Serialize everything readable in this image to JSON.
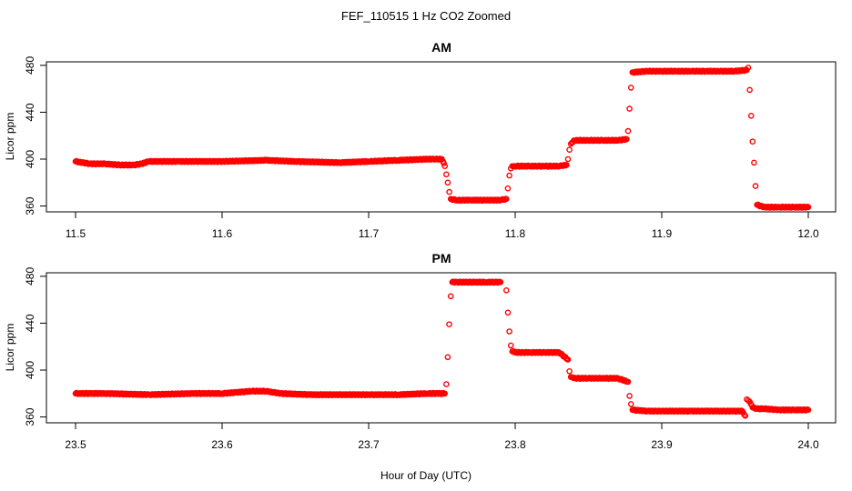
{
  "figure": {
    "title": "FEF_110515  1 Hz CO2 Zoomed",
    "xlabel": "Hour of Day (UTC)",
    "point_color": "#ff0000"
  },
  "chart_data": [
    {
      "type": "scatter",
      "title": "AM",
      "xlabel": "",
      "ylabel": "Licor ppm",
      "xlim": [
        11.5,
        12.0
      ],
      "ylim": [
        355,
        483
      ],
      "x_ticks": [
        11.5,
        11.6,
        11.7,
        11.8,
        11.9,
        12.0
      ],
      "x_tick_labels": [
        "11.5",
        "11.6",
        "11.7",
        "11.8",
        "11.9",
        "12.0"
      ],
      "y_ticks": [
        360,
        400,
        440,
        480
      ],
      "y_tick_labels": [
        "360",
        "400",
        "440",
        "480"
      ],
      "grid": false,
      "marker": "open-circle",
      "color": "#ff0000",
      "series": [
        {
          "x": [
            11.5,
            11.51,
            11.52,
            11.53,
            11.54,
            11.545,
            11.55,
            11.57,
            11.6,
            11.63,
            11.65,
            11.68,
            11.7,
            11.72,
            11.74,
            11.75,
            11.752,
            11.753,
            11.754,
            11.755,
            11.756,
            11.76,
            11.77,
            11.78,
            11.79,
            11.794,
            11.795,
            11.796,
            11.797,
            11.798,
            11.8,
            11.81,
            11.82,
            11.83,
            11.835,
            11.836,
            11.837,
            11.838,
            11.84,
            11.85,
            11.86,
            11.87,
            11.876,
            11.877,
            11.878,
            11.879,
            11.88,
            11.89,
            11.9,
            11.91,
            11.92,
            11.93,
            11.94,
            11.95,
            11.958,
            11.959,
            11.96,
            11.961,
            11.962,
            11.963,
            11.964,
            11.965,
            11.97,
            11.98,
            11.99,
            12.0
          ],
          "y": [
            398,
            396,
            396,
            395,
            395,
            396,
            398,
            398,
            398,
            399,
            398,
            397,
            398,
            399,
            400,
            400,
            394,
            387,
            380,
            372,
            366,
            365,
            365,
            365,
            365,
            366,
            375,
            386,
            392,
            394,
            394,
            394,
            394,
            394,
            395,
            400,
            408,
            413,
            416,
            416,
            416,
            416,
            417,
            424,
            443,
            461,
            474,
            475,
            475,
            475,
            475,
            475,
            475,
            475,
            476,
            478,
            459,
            437,
            415,
            397,
            377,
            361,
            359,
            359,
            359,
            359
          ]
        }
      ]
    },
    {
      "type": "scatter",
      "title": "PM",
      "xlabel": "",
      "ylabel": "Licor ppm",
      "xlim": [
        23.5,
        24.0
      ],
      "ylim": [
        355,
        483
      ],
      "x_ticks": [
        23.5,
        23.6,
        23.7,
        23.8,
        23.9,
        24.0
      ],
      "x_tick_labels": [
        "23.5",
        "23.6",
        "23.7",
        "23.8",
        "23.9",
        "24.0"
      ],
      "y_ticks": [
        360,
        400,
        440,
        480
      ],
      "y_tick_labels": [
        "360",
        "400",
        "440",
        "480"
      ],
      "grid": false,
      "marker": "open-circle",
      "color": "#ff0000",
      "series": [
        {
          "x": [
            23.5,
            23.52,
            23.55,
            23.58,
            23.6,
            23.61,
            23.62,
            23.63,
            23.64,
            23.66,
            23.7,
            23.72,
            23.74,
            23.752,
            23.753,
            23.754,
            23.755,
            23.756,
            23.757,
            23.76,
            23.78,
            23.79,
            23.794,
            23.795,
            23.796,
            23.797,
            23.798,
            23.8,
            23.81,
            23.82,
            23.83,
            23.836,
            23.837,
            23.838,
            23.84,
            23.85,
            23.86,
            23.87,
            23.877,
            23.878,
            23.879,
            23.88,
            23.89,
            23.9,
            23.92,
            23.94,
            23.955,
            23.957,
            23.958,
            23.959,
            23.96,
            23.962,
            23.965,
            23.97,
            23.98,
            23.99,
            24.0
          ],
          "y": [
            380,
            380,
            379,
            380,
            380,
            381,
            382,
            382,
            380,
            379,
            379,
            379,
            380,
            380,
            388,
            411,
            439,
            463,
            475,
            475,
            475,
            475,
            468,
            449,
            433,
            421,
            416,
            415,
            415,
            415,
            415,
            409,
            399,
            394,
            393,
            393,
            393,
            393,
            390,
            378,
            371,
            366,
            365,
            365,
            365,
            365,
            365,
            361,
            375,
            374,
            373,
            368,
            367,
            367,
            366,
            366,
            366
          ]
        }
      ]
    }
  ]
}
